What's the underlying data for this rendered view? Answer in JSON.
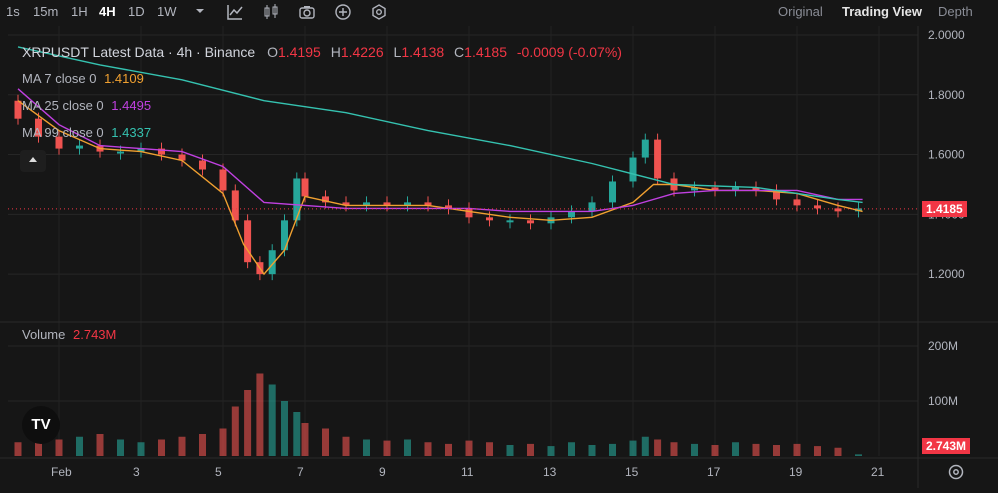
{
  "toolbar": {
    "timeframes": [
      "1s",
      "15m",
      "1H",
      "4H",
      "1D",
      "1W"
    ],
    "active_timeframe": "4H",
    "icons": [
      "chevron-down-icon",
      "line-chart-icon",
      "candles-icon",
      "camera-icon",
      "plus-circle-icon",
      "settings-hex-icon"
    ],
    "views": [
      "Original",
      "Trading View",
      "Depth"
    ],
    "active_view": "Trading View"
  },
  "legend": {
    "symbol_title": "XRPUSDT Latest Data · 4h · Binance",
    "o_label": "O",
    "o": "1.4195",
    "h_label": "H",
    "h": "1.4226",
    "l_label": "L",
    "l": "1.4138",
    "c_label": "C",
    "c": "1.4185",
    "change": "-0.0009 (-0.07%)",
    "ma7_label": "MA 7 close 0",
    "ma7": "1.4109",
    "ma25_label": "MA 25 close 0",
    "ma25": "1.4495",
    "ma99_label": "MA 99 close 0",
    "ma99": "1.4337",
    "volume_label": "Volume",
    "volume": "2.743M"
  },
  "price_tag": "1.4185",
  "volume_tag": "2.743M",
  "logo_text": "TV",
  "colors": {
    "background": "#161616",
    "up": "#26a69a",
    "down": "#ef5350",
    "ma7": "#f0a030",
    "ma25": "#c040e0",
    "ma99": "#35c2b0",
    "tag": "#f23645"
  },
  "chart_data": {
    "type": "line",
    "price_axis_ticks": [
      "2.0000",
      "1.8000",
      "1.6000",
      "1.4000",
      "1.2000"
    ],
    "volume_axis_ticks": [
      "200M",
      "100M"
    ],
    "x_tick_labels": [
      "Feb",
      "3",
      "5",
      "7",
      "9",
      "11",
      "13",
      "15",
      "17",
      "19",
      "21"
    ],
    "ylim": [
      1.06,
      2.03
    ],
    "series": [
      {
        "name": "MA 7 close 0",
        "x": [
          0,
          1,
          2,
          3,
          4,
          5,
          5.5,
          6,
          6.5,
          7,
          8,
          9,
          10,
          11,
          12,
          13,
          14,
          15,
          15.5,
          16,
          17,
          18,
          19,
          20,
          20.6
        ],
        "y": [
          1.78,
          1.68,
          1.62,
          1.61,
          1.58,
          1.47,
          1.3,
          1.2,
          1.28,
          1.46,
          1.43,
          1.43,
          1.43,
          1.41,
          1.39,
          1.38,
          1.39,
          1.44,
          1.5,
          1.5,
          1.48,
          1.48,
          1.47,
          1.43,
          1.41
        ]
      },
      {
        "name": "MA 25 close 0",
        "x": [
          0,
          1,
          2,
          3,
          4,
          5,
          6,
          7,
          8,
          9,
          10,
          11,
          12,
          13,
          14,
          15,
          16,
          17,
          18,
          19,
          20,
          20.6
        ],
        "y": [
          1.82,
          1.7,
          1.63,
          1.62,
          1.61,
          1.56,
          1.44,
          1.43,
          1.42,
          1.42,
          1.42,
          1.42,
          1.41,
          1.41,
          1.41,
          1.43,
          1.47,
          1.48,
          1.48,
          1.48,
          1.45,
          1.45
        ]
      },
      {
        "name": "MA 99 close 0",
        "x": [
          0,
          2,
          4,
          6,
          8,
          10,
          12,
          14,
          16,
          18,
          19,
          20,
          20.6
        ],
        "y": [
          1.96,
          1.9,
          1.85,
          1.78,
          1.74,
          1.68,
          1.63,
          1.57,
          1.5,
          1.49,
          1.47,
          1.45,
          1.44
        ]
      }
    ],
    "candles": {
      "x": [
        0,
        0.5,
        1,
        1.5,
        2,
        2.5,
        3,
        3.5,
        4,
        4.5,
        5,
        5.3,
        5.6,
        5.9,
        6.2,
        6.5,
        6.8,
        7,
        7.5,
        8,
        8.5,
        9,
        9.5,
        10,
        10.5,
        11,
        11.5,
        12,
        12.5,
        13,
        13.5,
        14,
        14.5,
        15,
        15.3,
        15.6,
        16,
        16.5,
        17,
        17.5,
        18,
        18.5,
        19,
        19.5,
        20,
        20.5
      ],
      "open": [
        1.78,
        1.72,
        1.66,
        1.62,
        1.63,
        1.61,
        1.61,
        1.62,
        1.6,
        1.58,
        1.55,
        1.48,
        1.38,
        1.24,
        1.2,
        1.28,
        1.38,
        1.52,
        1.46,
        1.44,
        1.43,
        1.44,
        1.43,
        1.44,
        1.43,
        1.42,
        1.39,
        1.38,
        1.38,
        1.37,
        1.39,
        1.41,
        1.44,
        1.51,
        1.59,
        1.65,
        1.52,
        1.48,
        1.49,
        1.48,
        1.49,
        1.48,
        1.45,
        1.43,
        1.42,
        1.41
      ],
      "close": [
        1.72,
        1.66,
        1.62,
        1.63,
        1.61,
        1.61,
        1.62,
        1.6,
        1.58,
        1.55,
        1.48,
        1.38,
        1.24,
        1.2,
        1.28,
        1.38,
        1.52,
        1.46,
        1.44,
        1.43,
        1.44,
        1.43,
        1.44,
        1.43,
        1.42,
        1.39,
        1.38,
        1.38,
        1.37,
        1.39,
        1.41,
        1.44,
        1.51,
        1.59,
        1.65,
        1.52,
        1.48,
        1.49,
        1.48,
        1.49,
        1.48,
        1.45,
        1.43,
        1.42,
        1.41,
        1.42
      ],
      "volume_M": [
        25,
        55,
        30,
        35,
        40,
        30,
        25,
        30,
        35,
        40,
        50,
        90,
        120,
        150,
        130,
        100,
        80,
        60,
        50,
        35,
        30,
        28,
        30,
        25,
        22,
        28,
        25,
        20,
        22,
        18,
        25,
        20,
        22,
        28,
        35,
        30,
        25,
        22,
        20,
        25,
        22,
        20,
        22,
        18,
        15,
        3
      ]
    }
  }
}
